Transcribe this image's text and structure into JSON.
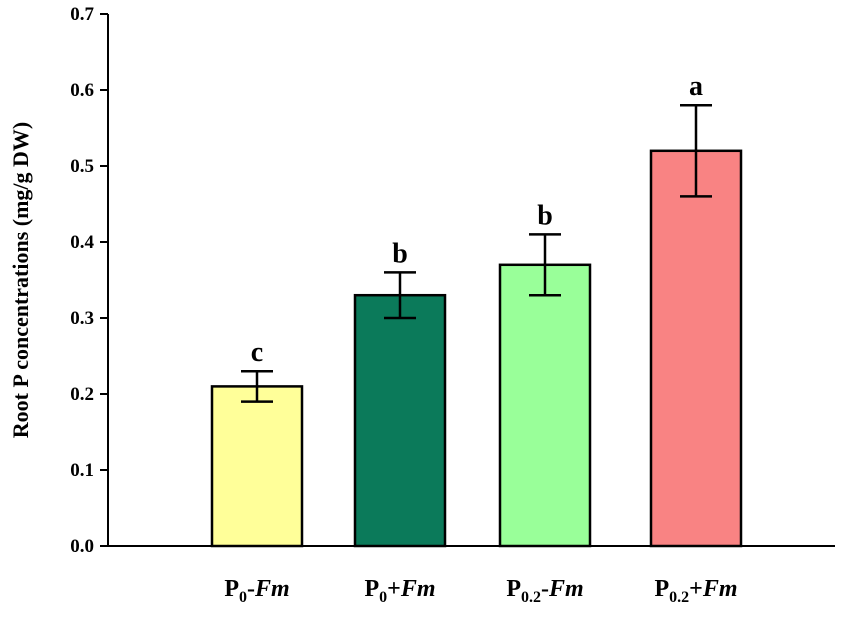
{
  "chart_data": {
    "type": "bar",
    "title": "",
    "xlabel": "",
    "ylabel": "Root P concentrations (mg/g DW)",
    "ylim": [
      0,
      0.7
    ],
    "yticks": [
      "0.0",
      "0.1",
      "0.2",
      "0.3",
      "0.4",
      "0.5",
      "0.6",
      "0.7"
    ],
    "grid": false,
    "legend": "none",
    "categories": [
      {
        "base": "P",
        "sub": "0",
        "op": "-",
        "italic": "Fm"
      },
      {
        "base": "P",
        "sub": "0",
        "op": "+",
        "italic": "Fm"
      },
      {
        "base": "P",
        "sub": "0.2",
        "op": "-",
        "italic": "Fm"
      },
      {
        "base": "P",
        "sub": "0.2",
        "op": "+",
        "italic": "Fm"
      }
    ],
    "values": [
      0.21,
      0.33,
      0.37,
      0.52
    ],
    "errors": [
      0.02,
      0.03,
      0.04,
      0.06
    ],
    "significance": [
      "c",
      "b",
      "b",
      "a"
    ],
    "colors": [
      "#FFFF99",
      "#0B7A5A",
      "#99FF99",
      "#F98383"
    ]
  }
}
